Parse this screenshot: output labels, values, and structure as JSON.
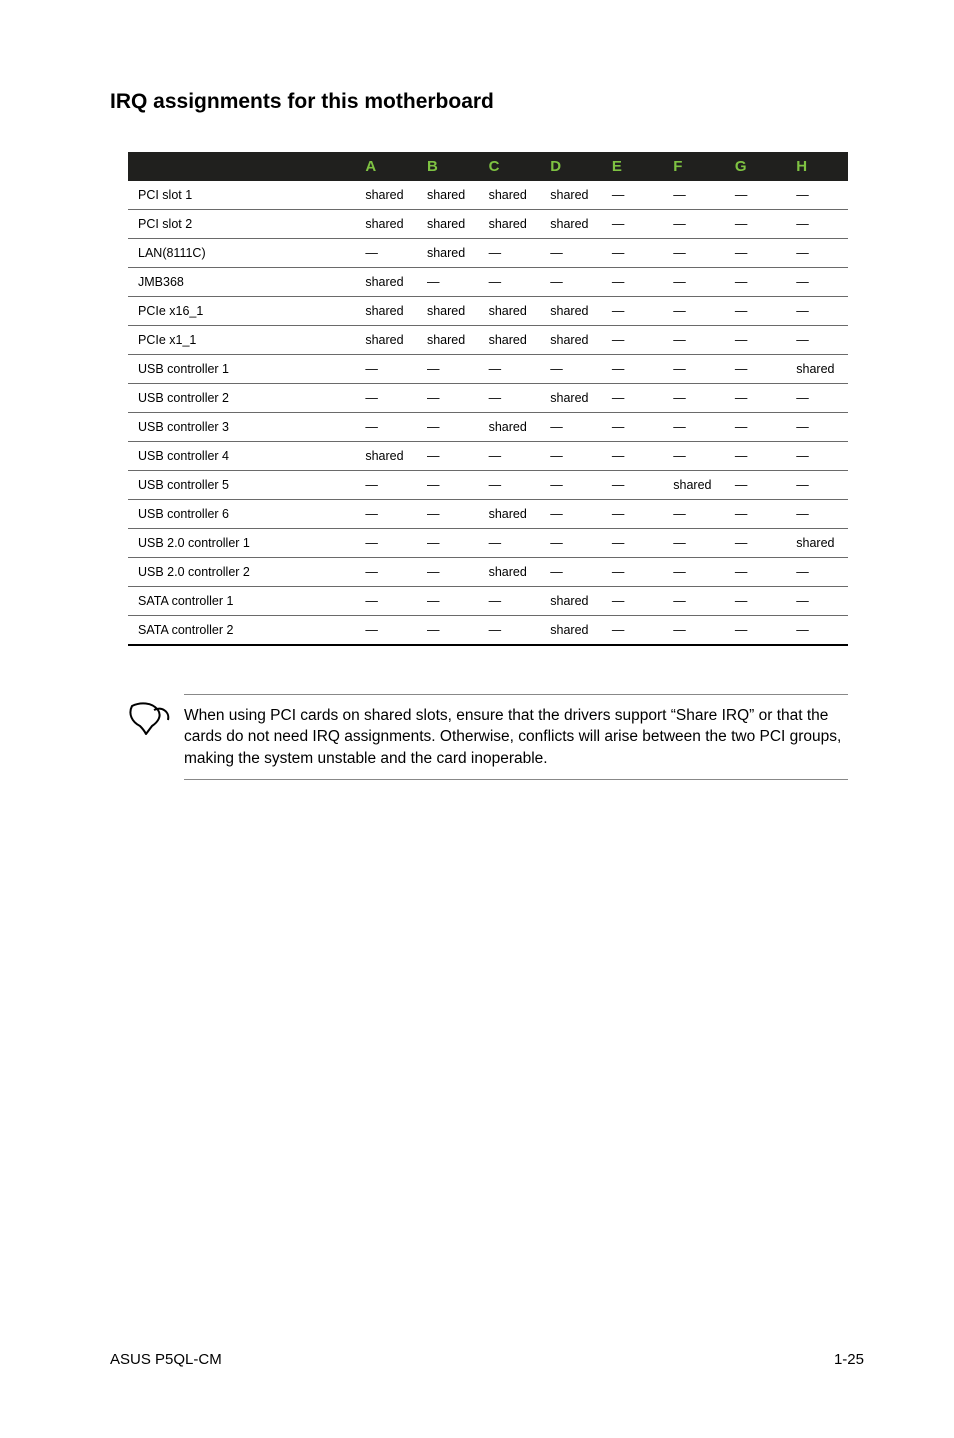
{
  "heading": "IRQ assignments for this motherboard",
  "table": {
    "columns": [
      "",
      "A",
      "B",
      "C",
      "D",
      "E",
      "F",
      "G",
      "H"
    ],
    "rows": [
      [
        "PCI slot 1",
        "shared",
        "shared",
        "shared",
        "shared",
        "—",
        "—",
        "—",
        "—"
      ],
      [
        "PCI slot 2",
        "shared",
        "shared",
        "shared",
        "shared",
        "—",
        "—",
        "—",
        "—"
      ],
      [
        "LAN(8111C)",
        "—",
        "shared",
        "—",
        "—",
        "—",
        "—",
        "—",
        "—"
      ],
      [
        "JMB368",
        "shared",
        "—",
        "—",
        "—",
        "—",
        "—",
        "—",
        "—"
      ],
      [
        "PCIe x16_1",
        "shared",
        "shared",
        "shared",
        "shared",
        "—",
        "—",
        "—",
        "—"
      ],
      [
        "PCIe x1_1",
        "shared",
        "shared",
        "shared",
        "shared",
        "—",
        "—",
        "—",
        "—"
      ],
      [
        "USB controller 1",
        "—",
        "—",
        "—",
        "—",
        "—",
        "—",
        "—",
        "shared"
      ],
      [
        "USB controller 2",
        "—",
        "—",
        "—",
        "shared",
        "—",
        "—",
        "—",
        "—"
      ],
      [
        "USB controller 3",
        "—",
        "—",
        "shared",
        "—",
        "—",
        "—",
        "—",
        "—"
      ],
      [
        "USB controller 4",
        "shared",
        "—",
        "—",
        "—",
        "—",
        "—",
        "—",
        "—"
      ],
      [
        "USB controller 5",
        "—",
        "—",
        "—",
        "—",
        "—",
        "shared",
        "—",
        "—"
      ],
      [
        "USB controller 6",
        "—",
        "—",
        "shared",
        "—",
        "—",
        "—",
        "—",
        "—"
      ],
      [
        "USB 2.0 controller 1",
        "—",
        "—",
        "—",
        "—",
        "—",
        "—",
        "—",
        "shared"
      ],
      [
        "USB 2.0 controller 2",
        "—",
        "—",
        "shared",
        "—",
        "—",
        "—",
        "—",
        "—"
      ],
      [
        "SATA controller 1",
        "—",
        "—",
        "—",
        "shared",
        "—",
        "—",
        "—",
        "—"
      ],
      [
        "SATA controller 2",
        "—",
        "—",
        "—",
        "shared",
        "—",
        "—",
        "—",
        "—"
      ]
    ],
    "header_bg": "#20201e",
    "header_color": "#7ec242",
    "border_color": "#6a6a6a",
    "cell_fontsize": 12.5
  },
  "note": "When using PCI cards on shared slots, ensure that the drivers support “Share IRQ” or that the cards do not need IRQ assignments. Otherwise, conflicts will arise between the two PCI groups, making the system unstable and the card inoperable.",
  "footer": {
    "left": "ASUS P5QL-CM",
    "right": "1-25"
  }
}
